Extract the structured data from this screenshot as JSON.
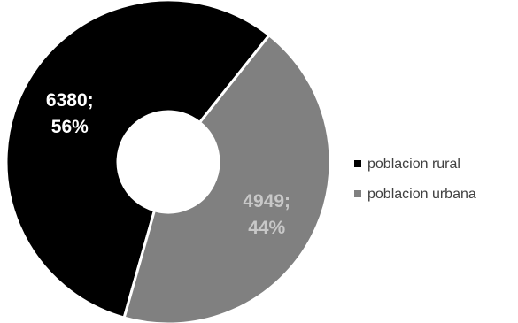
{
  "chart_data": {
    "type": "pie",
    "variant": "doughnut",
    "title": "",
    "categories": [
      "poblacion rural",
      "poblacion urbana"
    ],
    "values": [
      6380,
      4949
    ],
    "percentages": [
      56,
      44
    ],
    "colors": [
      "#000000",
      "#808080"
    ],
    "label_colors": [
      "#ffffff",
      "#c8c8c8"
    ],
    "data_labels": [
      {
        "value": "6380;",
        "percent": "56%"
      },
      {
        "value": "4949;",
        "percent": "44%"
      }
    ],
    "legend": {
      "position": "right",
      "items": [
        {
          "label": "poblacion rural",
          "color": "#000000"
        },
        {
          "label": "poblacion urbana",
          "color": "#808080"
        }
      ]
    }
  }
}
